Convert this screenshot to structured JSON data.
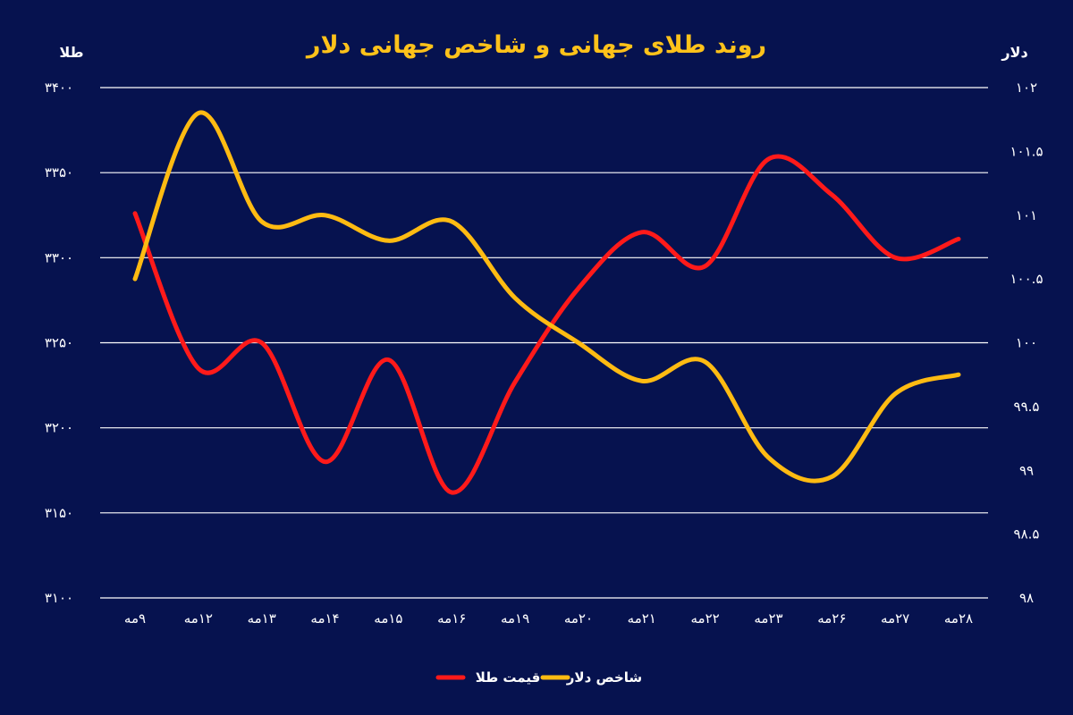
{
  "chart_data": {
    "type": "line",
    "title": "روند طلای جهانی و شاخص جهانی دلار",
    "left_axis_label": "طلا",
    "right_axis_label": "دلار",
    "categories": [
      "۹مه",
      "۱۲مه",
      "۱۳مه",
      "۱۴مه",
      "۱۵مه",
      "۱۶مه",
      "۱۹مه",
      "۲۰مه",
      "۲۱مه",
      "۲۲مه",
      "۲۳مه",
      "۲۶مه",
      "۲۷مه",
      "۲۸مه"
    ],
    "left_ticks": [
      {
        "value": 3100,
        "label": "۳۱۰۰"
      },
      {
        "value": 3150,
        "label": "۳۱۵۰"
      },
      {
        "value": 3200,
        "label": "۳۲۰۰"
      },
      {
        "value": 3250,
        "label": "۳۲۵۰"
      },
      {
        "value": 3300,
        "label": "۳۳۰۰"
      },
      {
        "value": 3350,
        "label": "۳۳۵۰"
      },
      {
        "value": 3400,
        "label": "۳۴۰۰"
      }
    ],
    "right_ticks": [
      {
        "value": 98,
        "label": "۹۸"
      },
      {
        "value": 98.5,
        "label": "۹۸.۵"
      },
      {
        "value": 99,
        "label": "۹۹"
      },
      {
        "value": 99.5,
        "label": "۹۹.۵"
      },
      {
        "value": 100,
        "label": "۱۰۰"
      },
      {
        "value": 100.5,
        "label": "۱۰۰.۵"
      },
      {
        "value": 101,
        "label": "۱۰۱"
      },
      {
        "value": 101.5,
        "label": "۱۰۱.۵"
      },
      {
        "value": 102,
        "label": "۱۰۲"
      }
    ],
    "ylim_left": [
      3100,
      3400
    ],
    "ylim_right": [
      98,
      102
    ],
    "grid": true,
    "legend_position": "bottom-center",
    "series": [
      {
        "name": "قیمت طلا",
        "axis": "left",
        "color": "#ff1a1a",
        "values": [
          3326,
          3235,
          3250,
          3180,
          3240,
          3162,
          3227,
          3282,
          3315,
          3295,
          3358,
          3337,
          3300,
          3311
        ]
      },
      {
        "name": "شاخص دلار",
        "axis": "right",
        "color": "#ffbb12",
        "values": [
          100.5,
          101.8,
          100.95,
          101.0,
          100.8,
          100.95,
          100.35,
          100.0,
          99.7,
          99.85,
          99.1,
          98.95,
          99.6,
          99.75
        ]
      }
    ]
  },
  "colors": {
    "background": "#06124f",
    "title": "#ffc21a",
    "grid": "#ffffff",
    "text": "#ffffff"
  }
}
